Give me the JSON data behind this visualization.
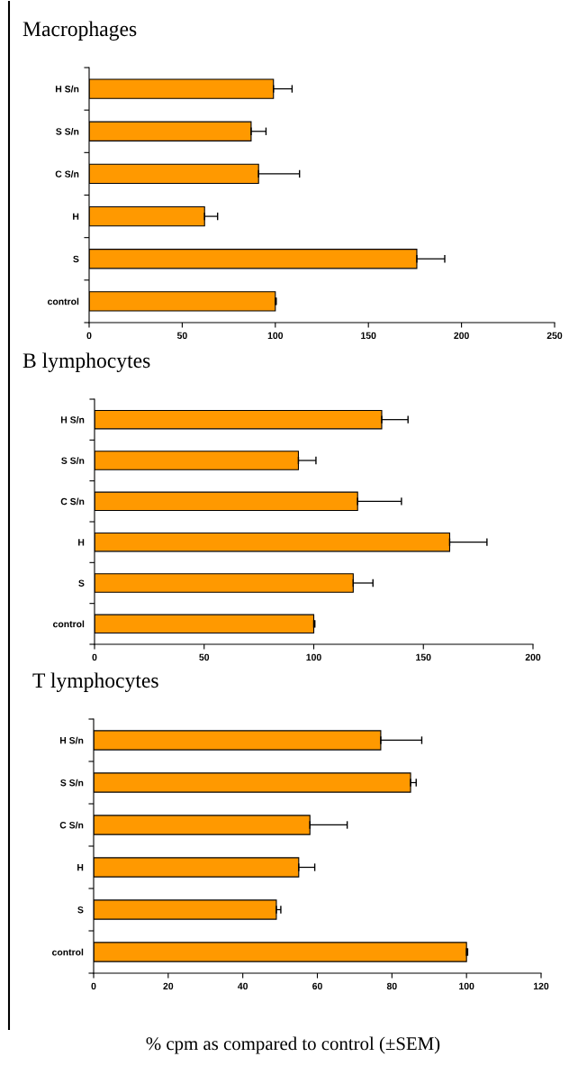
{
  "chart_data": [
    {
      "type": "bar",
      "title": "Macrophages",
      "orientation": "horizontal",
      "categories": [
        "H S/n",
        "S S/n",
        "C S/n",
        "H",
        "S",
        "control"
      ],
      "color": "#ff9900",
      "values": [
        99,
        87,
        91,
        62,
        176,
        100
      ],
      "errors": [
        [
          99,
          109
        ],
        [
          87,
          95
        ],
        [
          91,
          113
        ],
        [
          62,
          69
        ],
        [
          176,
          191
        ],
        [
          100,
          100.5
        ]
      ],
      "xlim": [
        0,
        250
      ],
      "xticks": [
        0,
        50,
        100,
        150,
        200,
        250
      ],
      "grid": false
    },
    {
      "type": "bar",
      "title": "B lymphocytes",
      "orientation": "horizontal",
      "categories": [
        "H S/n",
        "S S/n",
        "C S/n",
        "H",
        "S",
        "control"
      ],
      "color": "#ff9900",
      "values": [
        131,
        93,
        120,
        162,
        118,
        100
      ],
      "errors": [
        [
          131,
          143
        ],
        [
          93,
          101
        ],
        [
          120,
          140
        ],
        [
          162,
          179
        ],
        [
          118,
          127
        ],
        [
          100,
          100.5
        ]
      ],
      "xlim": [
        0,
        200
      ],
      "xticks": [
        0,
        50,
        100,
        150,
        200
      ],
      "grid": false
    },
    {
      "type": "bar",
      "title": "T lymphocytes",
      "orientation": "horizontal",
      "categories": [
        "H S/n",
        "S S/n",
        "C S/n",
        "H",
        "S",
        "control"
      ],
      "color": "#ff9900",
      "values": [
        77,
        85,
        58,
        55,
        49,
        100
      ],
      "errors": [
        [
          77,
          88
        ],
        [
          85,
          86.5
        ],
        [
          58,
          68
        ],
        [
          55,
          59.3
        ],
        [
          49,
          50.2
        ],
        [
          100,
          100.3
        ]
      ],
      "xlim": [
        0,
        120
      ],
      "xticks": [
        0,
        20,
        40,
        60,
        80,
        100,
        120
      ],
      "grid": false,
      "annotations": [
        "% cpm as compared to control (±SEM)"
      ]
    }
  ]
}
